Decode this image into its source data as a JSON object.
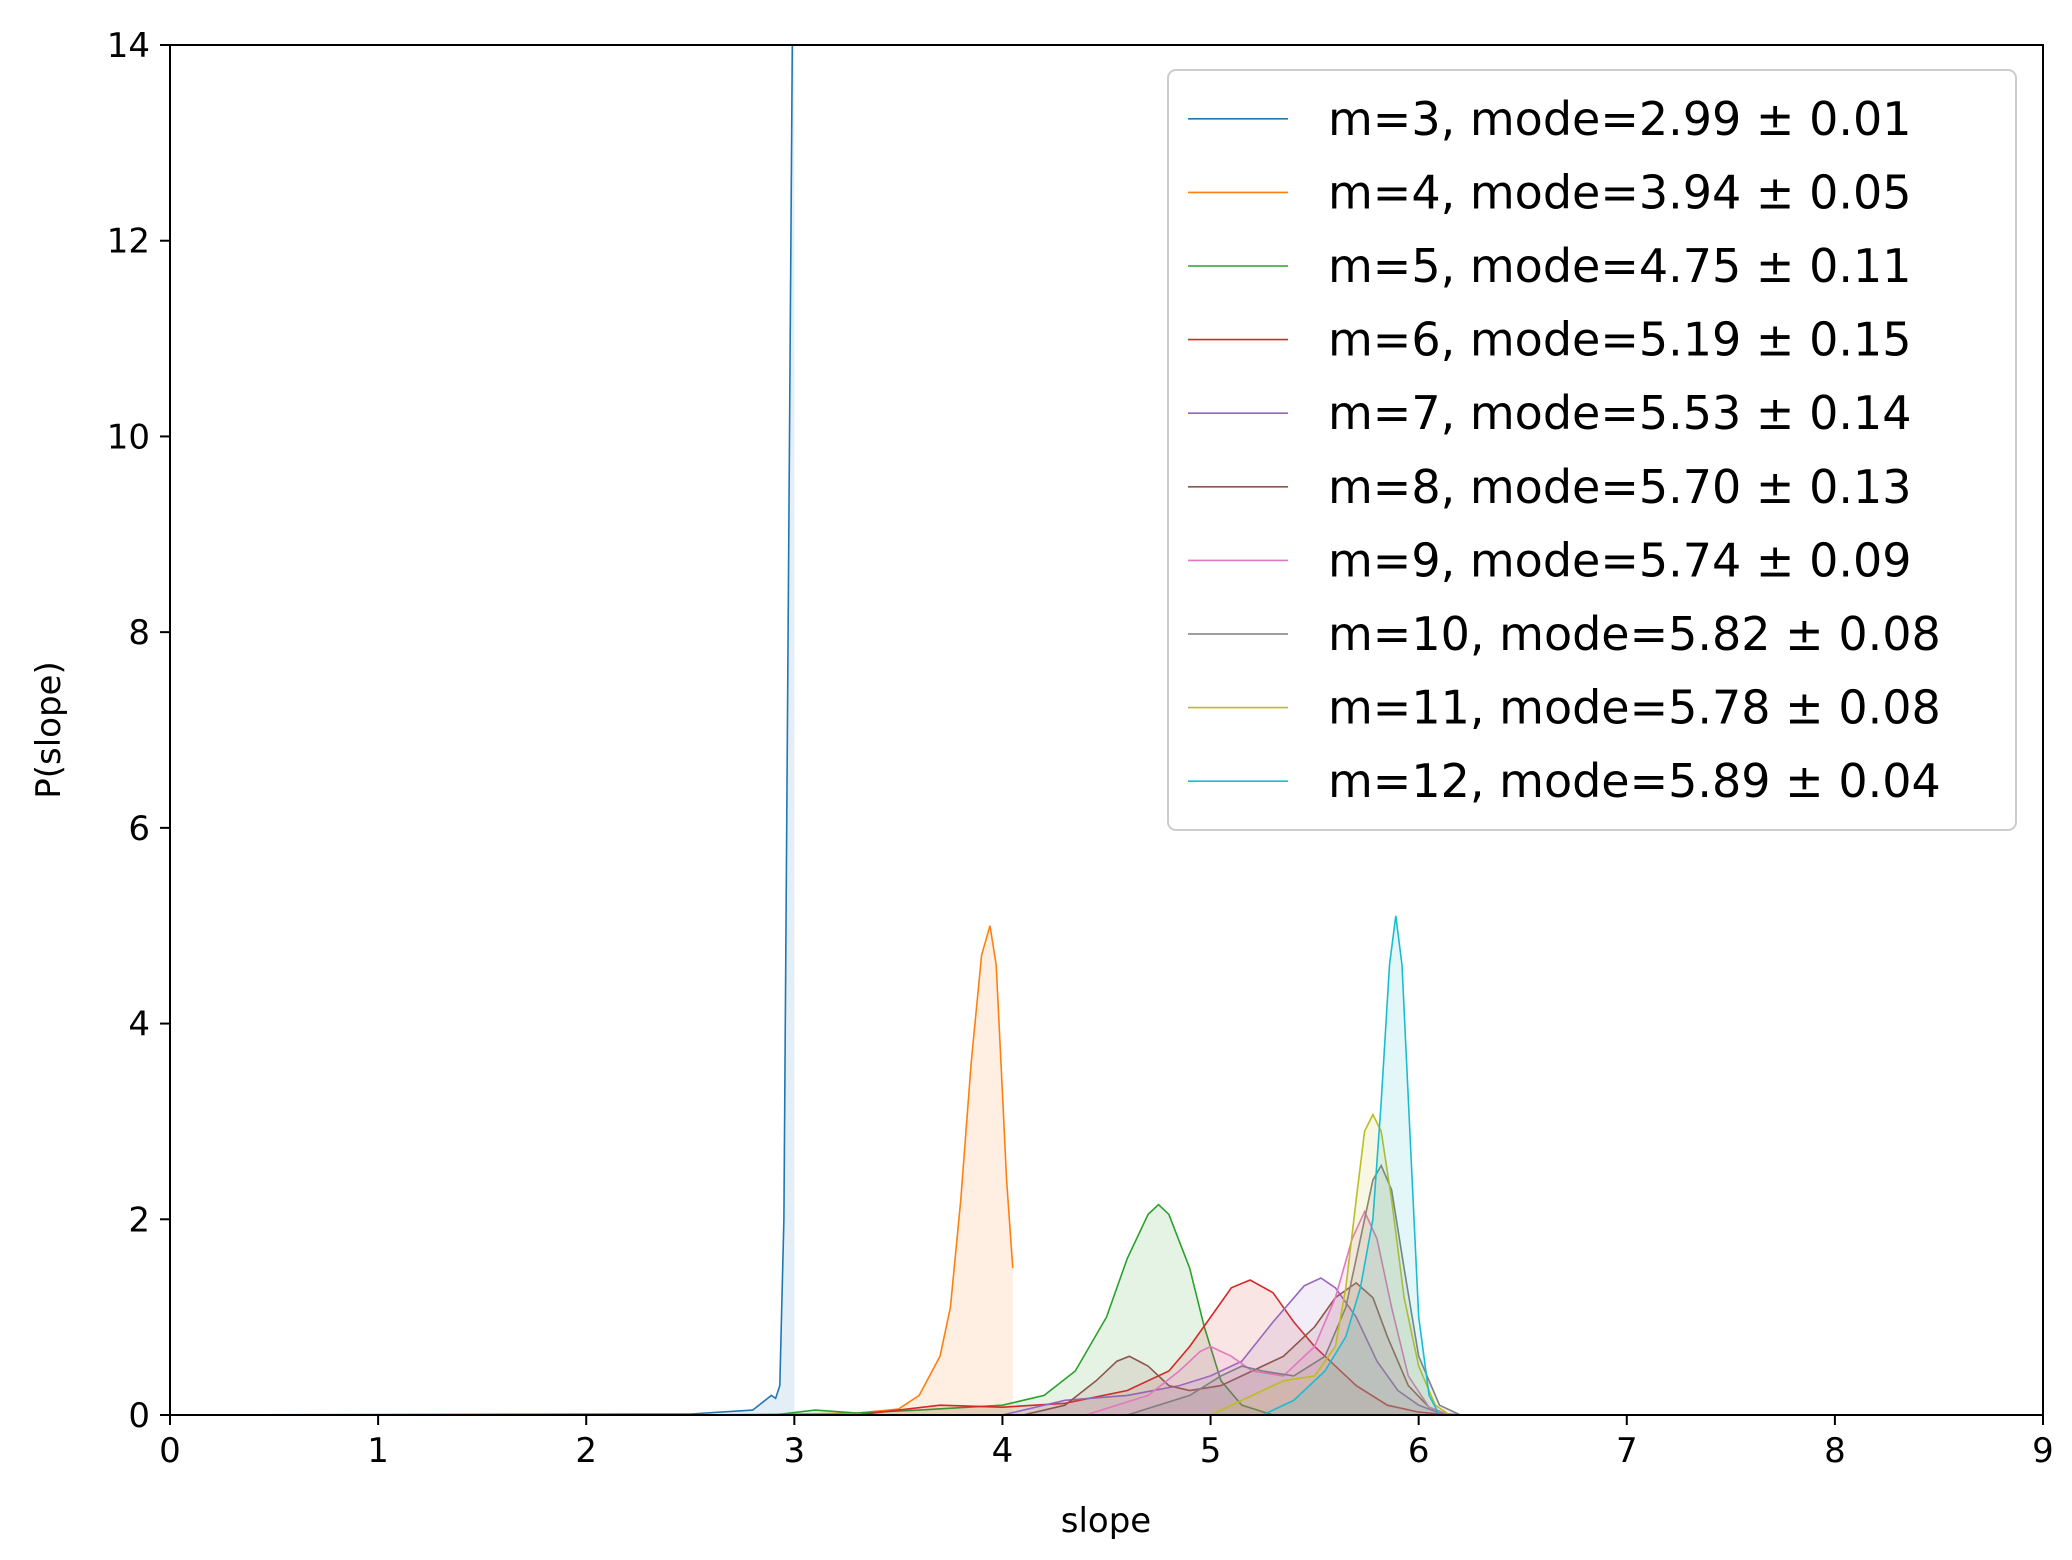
{
  "chart_data": {
    "type": "area",
    "title": "",
    "xlabel": "slope",
    "ylabel": "P(slope)",
    "xlim": [
      0,
      9
    ],
    "ylim": [
      0,
      14
    ],
    "xticks": [
      0,
      1,
      2,
      3,
      4,
      5,
      6,
      7,
      8,
      9
    ],
    "yticks": [
      0,
      2,
      4,
      6,
      8,
      10,
      12,
      14
    ],
    "grid": false,
    "legend_position": "top-right",
    "series": [
      {
        "name": "m=3, mode=2.99 ± 0.01",
        "color": "#1f77b4",
        "x": [
          0,
          2.5,
          2.8,
          2.86,
          2.89,
          2.91,
          2.93,
          2.95,
          2.97,
          2.99,
          3.0
        ],
        "y": [
          0,
          0.01,
          0.05,
          0.15,
          0.2,
          0.17,
          0.3,
          2.0,
          8.0,
          14.0,
          14.0
        ]
      },
      {
        "name": "m=4, mode=3.94 ± 0.05",
        "color": "#ff7f0e",
        "x": [
          2.5,
          3.0,
          3.3,
          3.5,
          3.6,
          3.7,
          3.75,
          3.8,
          3.85,
          3.9,
          3.94,
          3.97,
          4.0,
          4.02,
          4.05
        ],
        "y": [
          0,
          0.01,
          0.02,
          0.06,
          0.2,
          0.6,
          1.1,
          2.2,
          3.6,
          4.7,
          5.0,
          4.6,
          3.3,
          2.4,
          1.5
        ]
      },
      {
        "name": "m=5, mode=4.75 ± 0.11",
        "color": "#2ca02c",
        "x": [
          2.9,
          3.1,
          3.3,
          3.6,
          4.0,
          4.2,
          4.35,
          4.5,
          4.6,
          4.7,
          4.75,
          4.8,
          4.9,
          4.97,
          5.05,
          5.15,
          5.3
        ],
        "y": [
          0,
          0.05,
          0.02,
          0.05,
          0.1,
          0.2,
          0.45,
          1.0,
          1.6,
          2.05,
          2.15,
          2.05,
          1.5,
          0.9,
          0.35,
          0.1,
          0
        ]
      },
      {
        "name": "m=6, mode=5.19 ± 0.15",
        "color": "#d62728",
        "x": [
          3.3,
          3.7,
          4.0,
          4.3,
          4.6,
          4.8,
          4.9,
          5.0,
          5.1,
          5.19,
          5.3,
          5.4,
          5.5,
          5.6,
          5.7,
          5.85,
          6.0,
          6.1,
          6.2
        ],
        "y": [
          0,
          0.1,
          0.08,
          0.12,
          0.25,
          0.45,
          0.7,
          1.0,
          1.3,
          1.38,
          1.25,
          0.95,
          0.7,
          0.5,
          0.3,
          0.1,
          0.03,
          0.01,
          0
        ]
      },
      {
        "name": "m=7, mode=5.53 ± 0.14",
        "color": "#9467bd",
        "x": [
          4.0,
          4.3,
          4.6,
          4.85,
          5.0,
          5.15,
          5.3,
          5.45,
          5.53,
          5.6,
          5.7,
          5.8,
          5.9,
          6.0,
          6.1,
          6.2
        ],
        "y": [
          0,
          0.15,
          0.2,
          0.3,
          0.4,
          0.55,
          0.95,
          1.32,
          1.4,
          1.3,
          1.0,
          0.55,
          0.25,
          0.1,
          0.02,
          0
        ]
      },
      {
        "name": "m=8, mode=5.70 ± 0.13",
        "color": "#8c564b",
        "x": [
          4.1,
          4.3,
          4.45,
          4.55,
          4.61,
          4.7,
          4.8,
          4.9,
          5.05,
          5.2,
          5.35,
          5.5,
          5.6,
          5.7,
          5.78,
          5.85,
          5.95,
          6.05,
          6.15
        ],
        "y": [
          0,
          0.1,
          0.35,
          0.55,
          0.6,
          0.5,
          0.3,
          0.25,
          0.3,
          0.45,
          0.6,
          0.9,
          1.2,
          1.35,
          1.2,
          0.8,
          0.3,
          0.08,
          0
        ]
      },
      {
        "name": "m=9, mode=5.74 ± 0.09",
        "color": "#e377c2",
        "x": [
          4.4,
          4.7,
          4.85,
          4.95,
          5.0,
          5.1,
          5.2,
          5.35,
          5.5,
          5.6,
          5.68,
          5.74,
          5.8,
          5.87,
          5.95,
          6.05,
          6.15
        ],
        "y": [
          0,
          0.2,
          0.45,
          0.65,
          0.7,
          0.6,
          0.45,
          0.4,
          0.7,
          1.2,
          1.8,
          2.08,
          1.8,
          1.1,
          0.4,
          0.08,
          0
        ]
      },
      {
        "name": "m=10, mode=5.82 ± 0.08",
        "color": "#7f7f7f",
        "x": [
          4.6,
          4.9,
          5.05,
          5.15,
          5.25,
          5.4,
          5.55,
          5.65,
          5.72,
          5.78,
          5.82,
          5.87,
          5.93,
          6.0,
          6.1,
          6.2
        ],
        "y": [
          0,
          0.2,
          0.4,
          0.5,
          0.45,
          0.4,
          0.6,
          1.1,
          1.8,
          2.4,
          2.55,
          2.3,
          1.5,
          0.6,
          0.1,
          0
        ]
      },
      {
        "name": "m=11, mode=5.78 ± 0.08",
        "color": "#bcbd22",
        "x": [
          5.0,
          5.2,
          5.35,
          5.5,
          5.6,
          5.65,
          5.7,
          5.74,
          5.78,
          5.82,
          5.87,
          5.93,
          6.0,
          6.08,
          6.15
        ],
        "y": [
          0,
          0.2,
          0.35,
          0.4,
          0.7,
          1.3,
          2.2,
          2.9,
          3.07,
          2.9,
          2.2,
          1.2,
          0.5,
          0.1,
          0
        ]
      },
      {
        "name": "m=12, mode=5.89 ± 0.04",
        "color": "#17becf",
        "x": [
          5.25,
          5.4,
          5.55,
          5.65,
          5.72,
          5.78,
          5.82,
          5.86,
          5.89,
          5.92,
          5.96,
          6.0,
          6.05,
          6.1
        ],
        "y": [
          0,
          0.15,
          0.45,
          0.8,
          1.3,
          2.0,
          3.2,
          4.6,
          5.1,
          4.6,
          2.8,
          1.0,
          0.2,
          0
        ]
      }
    ]
  }
}
